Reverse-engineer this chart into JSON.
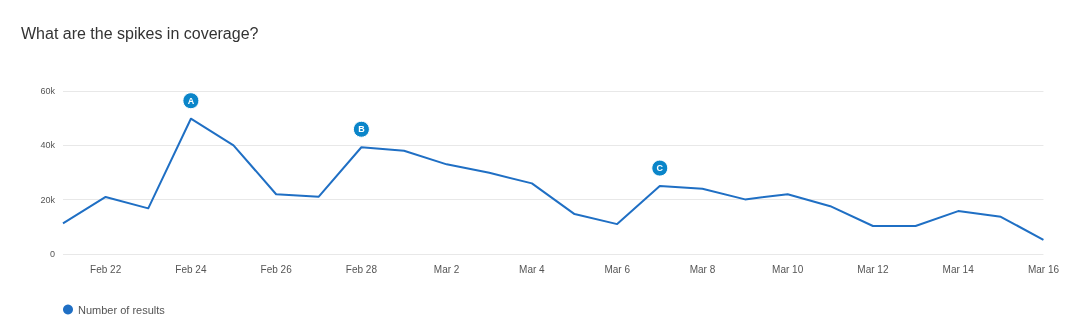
{
  "chart_data": {
    "type": "line",
    "title": "What are the spikes in coverage?",
    "x": [
      "--02-21",
      "--02-22",
      "--02-23",
      "--02-24",
      "--02-25",
      "--02-26",
      "--02-27",
      "--02-28",
      "--03-01",
      "--03-02",
      "--03-03",
      "--03-04",
      "--03-05",
      "--03-06",
      "--03-07",
      "--03-08",
      "--03-09",
      "--03-10",
      "--03-11",
      "--03-12",
      "--03-13",
      "--03-14",
      "--03-15",
      "--03-16"
    ],
    "series": [
      {
        "name": "Number of results",
        "color": "#1f6fc4",
        "values": [
          11300,
          21000,
          16800,
          49800,
          40000,
          22000,
          21100,
          39300,
          38000,
          33000,
          29900,
          26000,
          14700,
          11000,
          25000,
          24000,
          20100,
          22000,
          17600,
          10300,
          10300,
          15800,
          13700,
          5200
        ]
      }
    ],
    "xlim": [
      "--02-21",
      "--03-16"
    ],
    "xticks": [
      {
        "value": "--02-22",
        "label": "Feb 22"
      },
      {
        "value": "--02-24",
        "label": "Feb 24"
      },
      {
        "value": "--02-26",
        "label": "Feb 26"
      },
      {
        "value": "--02-28",
        "label": "Feb 28"
      },
      {
        "value": "--03-02",
        "label": "Mar 2"
      },
      {
        "value": "--03-04",
        "label": "Mar 4"
      },
      {
        "value": "--03-06",
        "label": "Mar 6"
      },
      {
        "value": "--03-08",
        "label": "Mar 8"
      },
      {
        "value": "--03-10",
        "label": "Mar 10"
      },
      {
        "value": "--03-12",
        "label": "Mar 12"
      },
      {
        "value": "--03-14",
        "label": "Mar 14"
      },
      {
        "value": "--03-16",
        "label": "Mar 16"
      }
    ],
    "ylim": [
      0,
      60000
    ],
    "yticks": [
      {
        "value": 0,
        "label": "0"
      },
      {
        "value": 20000,
        "label": "20k"
      },
      {
        "value": 40000,
        "label": "40k"
      },
      {
        "value": 60000,
        "label": "60k"
      }
    ],
    "annotations": [
      {
        "text": "A",
        "x": "--02-24",
        "y": 49800
      },
      {
        "text": "B",
        "x": "--02-28",
        "y": 39300
      },
      {
        "text": "C",
        "x": "--03-07",
        "y": 25000
      }
    ],
    "grid": "y",
    "legend": "bottom left",
    "marker": "none",
    "line_style": "solid"
  }
}
